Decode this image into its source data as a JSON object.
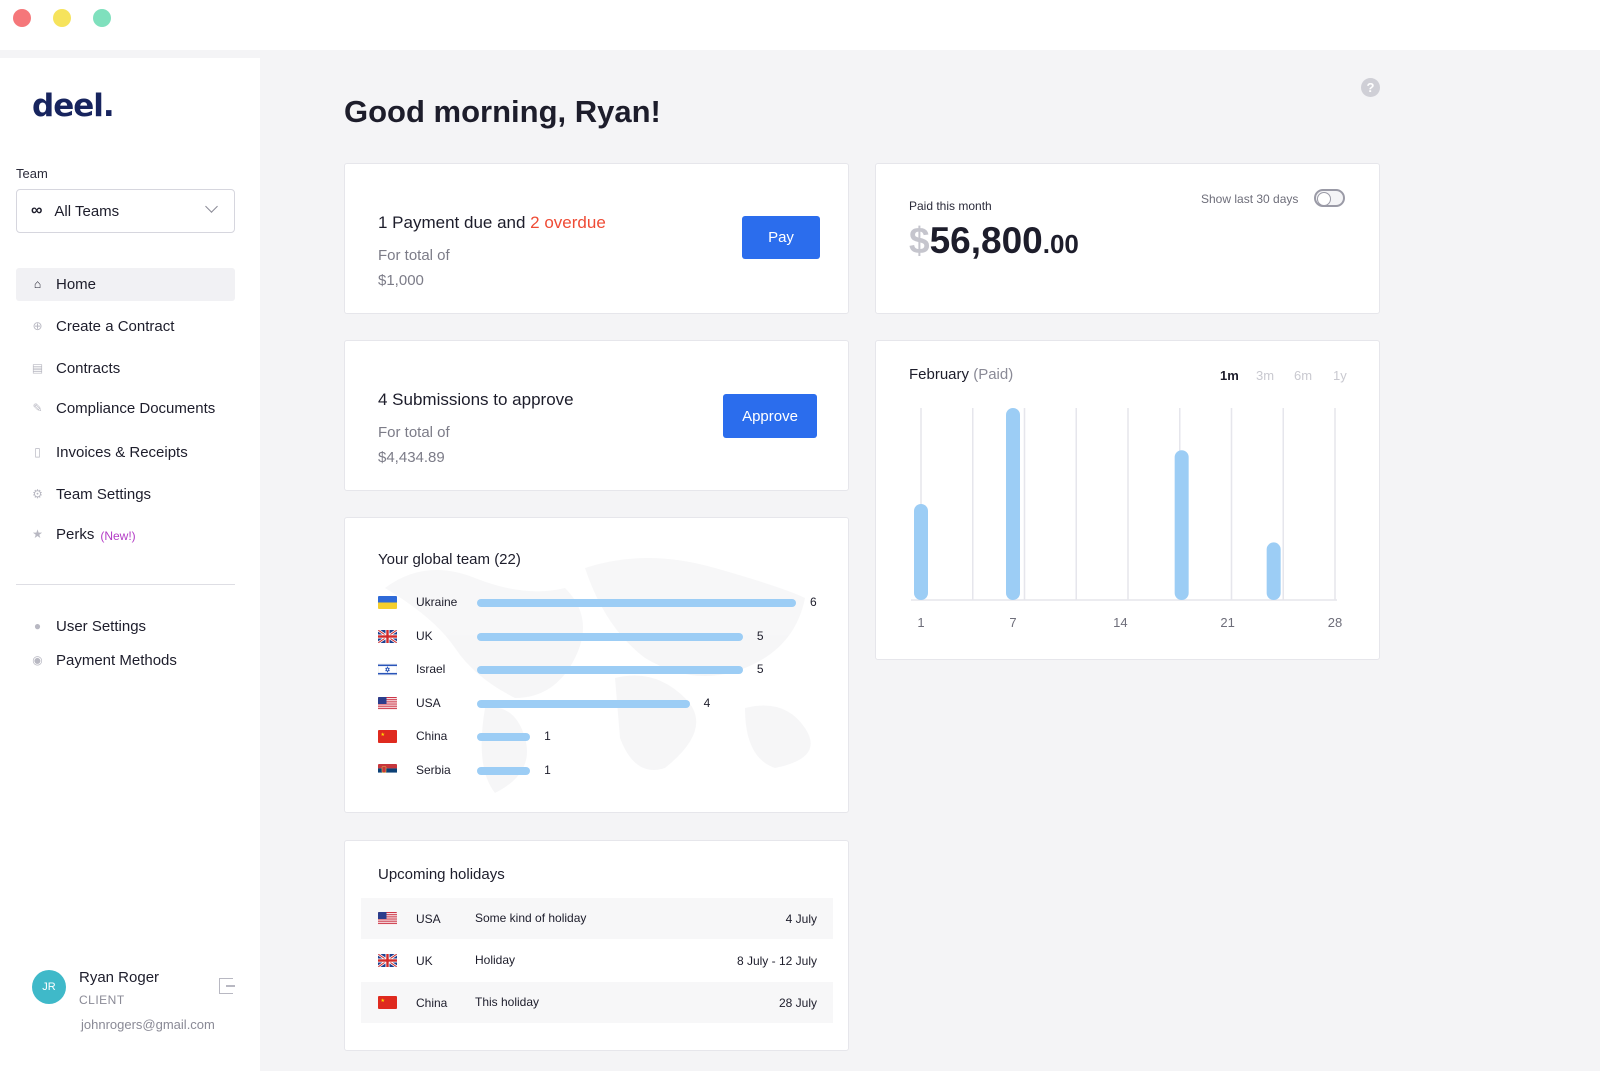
{
  "window": {
    "controls": [
      "close",
      "minimize",
      "maximize"
    ]
  },
  "sidebar": {
    "logo": "deel.",
    "team_label": "Team",
    "team_select": {
      "icon": "infinity-icon",
      "value": "All Teams"
    },
    "nav": [
      {
        "label": "Home",
        "icon": "home-icon",
        "active": true
      },
      {
        "label": "Create a Contract",
        "icon": "plus-circle-icon"
      },
      {
        "label": "Contracts",
        "icon": "document-icon"
      },
      {
        "label": "Compliance Documents",
        "icon": "pin-icon"
      },
      {
        "label": "Invoices & Receipts",
        "icon": "receipt-icon"
      },
      {
        "label": "Team Settings",
        "icon": "gear-icon"
      },
      {
        "label": "Perks",
        "icon": "star-icon",
        "badge": "(New!)"
      }
    ],
    "nav_secondary": [
      {
        "label": "User Settings",
        "icon": "user-icon"
      },
      {
        "label": "Payment Methods",
        "icon": "payment-icon"
      }
    ],
    "user": {
      "initials": "JR",
      "name": "Ryan Roger",
      "role": "CLIENT",
      "email": "johnrogers@gmail.com"
    }
  },
  "main": {
    "greeting": "Good morning, Ryan!",
    "payment_card": {
      "title_prefix": "1 Payment due and ",
      "title_overdue": "2 overdue",
      "total_label": "For total of",
      "total_value": "$1,000",
      "button": "Pay"
    },
    "submissions_card": {
      "title": "4 Submissions to approve",
      "total_label": "For total of",
      "total_value": "$4,434.89",
      "button": "Approve"
    },
    "paid_card": {
      "label": "Paid this month",
      "toggle_label": "Show last 30 days",
      "currency": "$",
      "amount": "56,800",
      "decimals": ".00"
    },
    "global_team": {
      "title": "Your global team (22)",
      "max": 6,
      "rows": [
        {
          "country": "Ukraine",
          "count": 6,
          "flag": "ukraine"
        },
        {
          "country": "UK",
          "count": 5,
          "flag": "uk"
        },
        {
          "country": "Israel",
          "count": 5,
          "flag": "israel"
        },
        {
          "country": "USA",
          "count": 4,
          "flag": "usa"
        },
        {
          "country": "China",
          "count": 1,
          "flag": "china"
        },
        {
          "country": "Serbia",
          "count": 1,
          "flag": "serbia"
        }
      ]
    },
    "holidays": {
      "title": "Upcoming holidays",
      "rows": [
        {
          "country": "USA",
          "name": "Some kind of holiday",
          "date": "4 July",
          "flag": "usa"
        },
        {
          "country": "UK",
          "name": "Holiday",
          "date": "8 July - 12 July",
          "flag": "uk"
        },
        {
          "country": "China",
          "name": "This holiday",
          "date": "28 July",
          "flag": "china"
        }
      ]
    }
  },
  "chart_data": {
    "type": "bar",
    "title": "February",
    "title_suffix": "(Paid)",
    "range_tabs": [
      "1m",
      "3m",
      "6m",
      "1y"
    ],
    "active_range": "1m",
    "x_ticks": [
      1,
      7,
      14,
      21,
      28
    ],
    "x_range": [
      1,
      28
    ],
    "bars_fraction_of_max": [
      {
        "day": 1,
        "value": 0.5
      },
      {
        "day": 7,
        "value": 1.0
      },
      {
        "day": 18,
        "value": 0.78
      },
      {
        "day": 24,
        "value": 0.3
      }
    ],
    "grid": true,
    "colors": {
      "bar": "#9ccdf5"
    }
  },
  "colors": {
    "accent": "#2b6ded",
    "overdue": "#ef4b35",
    "brand": "#17245e",
    "new_badge": "#b33cc6"
  }
}
